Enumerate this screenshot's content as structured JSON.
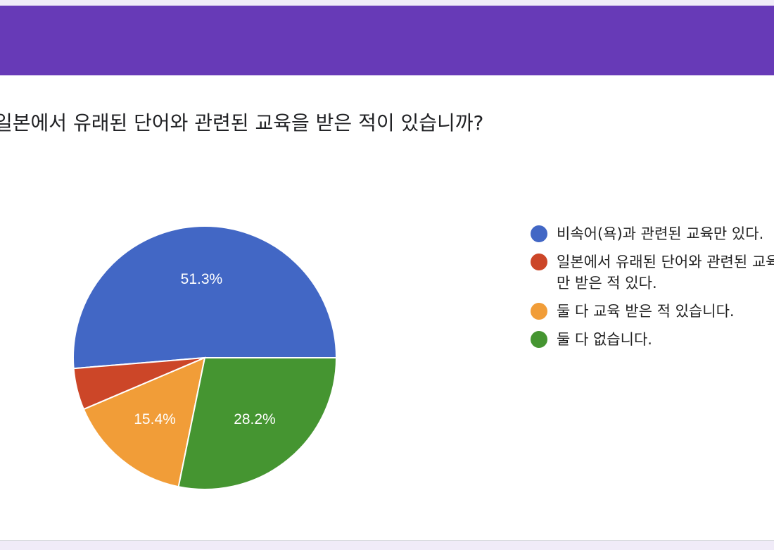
{
  "header": {
    "title": "!"
  },
  "question": {
    "text": "일본에서 유래된 단어와 관련된 교육을 받은 적이 있습니까?"
  },
  "chart_data": {
    "type": "pie",
    "slices": [
      {
        "label": "비속어(욕)과 관련된 교육만 있다.",
        "percent": 51.3,
        "value_label": "51.3%",
        "color": "#4267c5"
      },
      {
        "label": "일본에서 유래된 단어와 관련된 교육만 받은 적 있다.",
        "percent": 5.1,
        "value_label": "",
        "color": "#cc4628"
      },
      {
        "label": "둘 다 교육 받은 적 있습니다.",
        "percent": 15.4,
        "value_label": "15.4%",
        "color": "#f19d38"
      },
      {
        "label": "둘 다 없습니다.",
        "percent": 28.2,
        "value_label": "28.2%",
        "color": "#459531"
      }
    ],
    "legend_position": "right"
  }
}
